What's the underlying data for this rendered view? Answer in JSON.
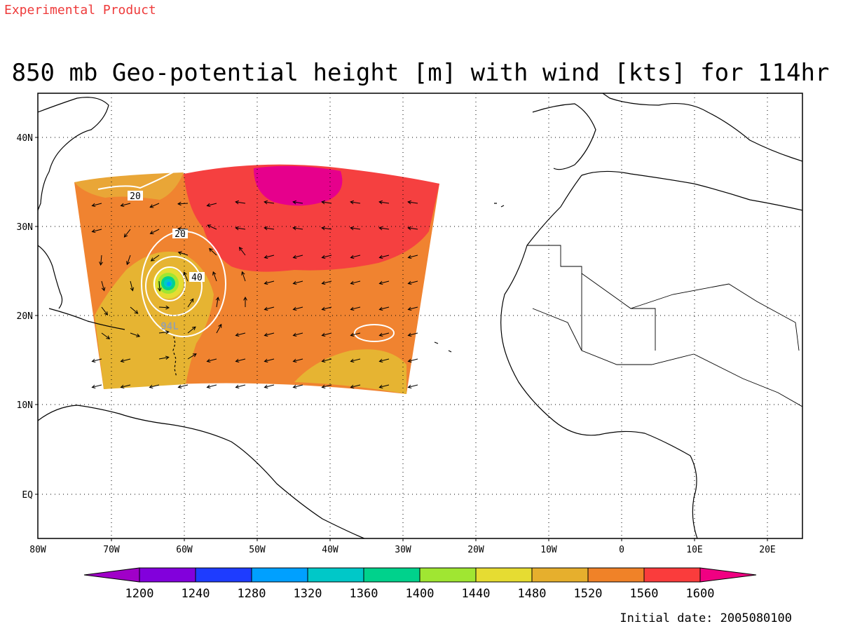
{
  "header": {
    "product_note": "Experimental Product",
    "title": "850 mb Geo-potential height [m] with wind [kts] for 114hr"
  },
  "map": {
    "lat_ticks": [
      "40N",
      "30N",
      "20N",
      "10N",
      "EQ"
    ],
    "lon_ticks": [
      "80W",
      "70W",
      "60W",
      "50W",
      "40W",
      "30W",
      "20W",
      "10W",
      "0",
      "10E",
      "20E"
    ],
    "contour_labels": [
      "20",
      "20",
      "40"
    ],
    "storm_label": "94L",
    "height_field_colors": {
      "1480": "#e6b832",
      "1520": "#e9a637",
      "1560": "#f08330",
      "1600": "#f54040",
      "above": "#e6008c"
    },
    "contour_color": "#ffffff",
    "coastline_color": "#000000",
    "gridline_style": "dotted"
  },
  "colorbar": {
    "ticks": [
      "1200",
      "1240",
      "1280",
      "1320",
      "1360",
      "1400",
      "1440",
      "1480",
      "1520",
      "1560",
      "1600"
    ],
    "colors": [
      "#a000c8",
      "#8200dc",
      "#1e3cff",
      "#00a0ff",
      "#00c8c8",
      "#00d28c",
      "#a0e632",
      "#e6dc32",
      "#e6af2d",
      "#f08228",
      "#fa3c3c",
      "#f00082"
    ]
  },
  "footer": {
    "initial_date": "Initial date: 2005080100"
  }
}
